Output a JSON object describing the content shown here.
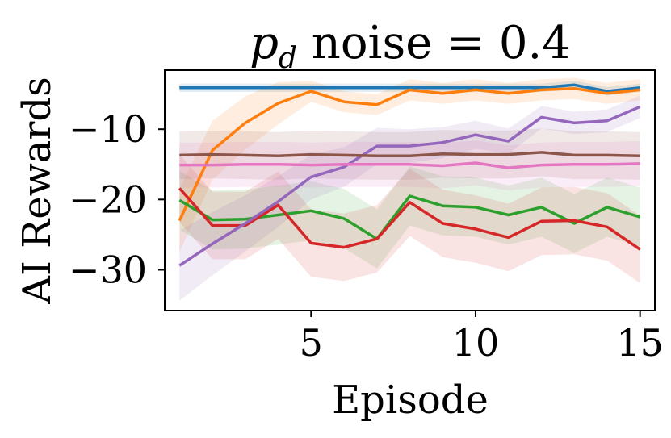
{
  "chart_data": {
    "type": "line",
    "title": {
      "symbol": "p",
      "subscript": "d",
      "rest": " noise = 0.4"
    },
    "xlabel": "Episode",
    "ylabel": "AI Rewards",
    "xlim": [
      0.55,
      15.45
    ],
    "ylim": [
      -35.8,
      -1.6
    ],
    "xticks": [
      {
        "value": 5,
        "label": "5"
      },
      {
        "value": 10,
        "label": "10"
      },
      {
        "value": 15,
        "label": "15"
      }
    ],
    "yticks": [
      {
        "value": -10,
        "label": "−10"
      },
      {
        "value": -20,
        "label": "−20"
      },
      {
        "value": -30,
        "label": "−30"
      }
    ],
    "grid": false,
    "legend": false,
    "x": [
      1,
      2,
      3,
      4,
      5,
      6,
      7,
      8,
      9,
      10,
      11,
      12,
      13,
      14,
      15
    ],
    "series": [
      {
        "color": "#1f77b4",
        "values": [
          -4.1,
          -4.1,
          -4.1,
          -4.1,
          -4.1,
          -4.1,
          -4.1,
          -4.1,
          -4.1,
          -4.1,
          -4.1,
          -4.1,
          -3.7,
          -4.6,
          -4.1
        ],
        "band": 0.6
      },
      {
        "color": "#ff7f0e",
        "values": [
          -23,
          -13,
          -9.1,
          -6.3,
          -4.6,
          -6.1,
          -6.5,
          -4.4,
          -4.9,
          -4.4,
          -4.9,
          -4.4,
          -4.2,
          -4.9,
          -4.4
        ],
        "band": [
          4.5,
          4.2,
          3.8,
          3,
          1.5,
          1.5,
          1.5,
          1.5,
          1.5,
          1.5,
          1.5,
          1.5,
          1.5,
          1.5,
          1.5
        ]
      },
      {
        "color": "#2ca02c",
        "values": [
          -20.1,
          -22.9,
          -22.8,
          -22.2,
          -21.6,
          -22.7,
          -25.6,
          -19.5,
          -20.9,
          -21.1,
          -22.2,
          -21.1,
          -23.4,
          -21.1,
          -22.5
        ],
        "band": 4.2
      },
      {
        "color": "#d62728",
        "values": [
          -18.4,
          -23.7,
          -23.7,
          -20.8,
          -26.2,
          -26.8,
          -25.6,
          -20.4,
          -23.4,
          -24.2,
          -25.4,
          -23.1,
          -23,
          -23.9,
          -27.1
        ],
        "band": 4.8
      },
      {
        "color": "#9467bd",
        "values": [
          -29.4,
          -26.3,
          -23.4,
          -20.3,
          -16.8,
          -15.4,
          -12.4,
          -12.4,
          -11.9,
          -10.8,
          -11.7,
          -8.3,
          -9.1,
          -8.8,
          -6.8
        ],
        "band": [
          5,
          4.5,
          4,
          3.6,
          3.2,
          2.8,
          2.6,
          2.4,
          2.2,
          2,
          1.8,
          1.6,
          1.6,
          1.6,
          1.6
        ]
      },
      {
        "color": "#8c564b",
        "values": [
          -13.7,
          -13.6,
          -13.7,
          -13.8,
          -13.6,
          -13.7,
          -13.8,
          -13.8,
          -13.5,
          -13.6,
          -13.6,
          -13.3,
          -13.7,
          -13.7,
          -13.8
        ],
        "band": 3.4
      },
      {
        "color": "#e377c2",
        "values": [
          -15.1,
          -15.1,
          -15.0,
          -15.0,
          -15.1,
          -15.0,
          -15.0,
          -15.0,
          -15.2,
          -14.8,
          -15.5,
          -15.1,
          -15.0,
          -15.0,
          -14.9
        ],
        "band": 3.2
      }
    ]
  }
}
